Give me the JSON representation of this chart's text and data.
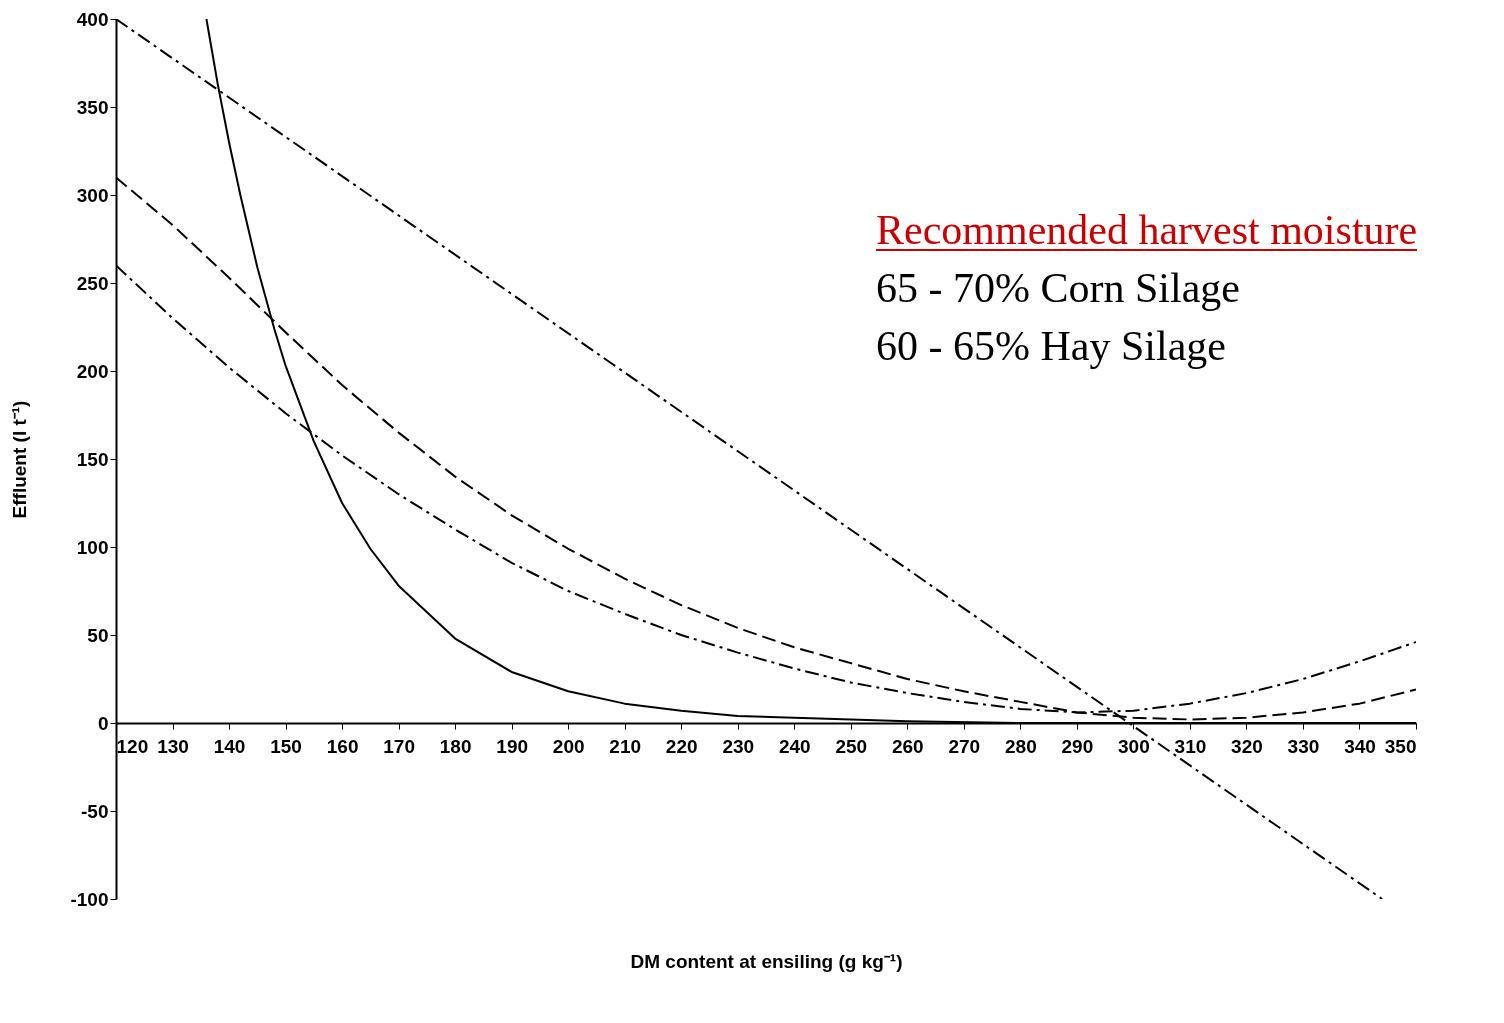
{
  "chart_data": {
    "type": "line",
    "xlabel": "DM content at ensiling (g kg⁻¹)",
    "ylabel": "Effluent (l t⁻¹)",
    "xlim": [
      120,
      350
    ],
    "xticks": [
      120,
      130,
      140,
      150,
      160,
      170,
      180,
      190,
      200,
      210,
      220,
      230,
      240,
      250,
      260,
      270,
      280,
      290,
      300,
      310,
      320,
      330,
      340,
      350
    ],
    "ylim": [
      -100,
      400
    ],
    "yticks": [
      -100,
      -50,
      0,
      50,
      100,
      150,
      200,
      250,
      300,
      350,
      400
    ],
    "grid": false,
    "marker": "none",
    "annotations": [
      "Recommended harvest moisture",
      "65 - 70%  Corn Silage",
      "60 - 65% Hay Silage"
    ],
    "series": [
      {
        "color": "#000000",
        "line_style": "solid",
        "x": [
          136,
          138,
          140,
          142,
          145,
          148,
          150,
          155,
          160,
          165,
          170,
          180,
          190,
          200,
          210,
          220,
          230,
          240,
          260,
          280,
          300,
          350
        ],
        "values": [
          400,
          363,
          330,
          300,
          259,
          224,
          203,
          160,
          125,
          99,
          78,
          48,
          29,
          18,
          11,
          7,
          4,
          3,
          1,
          0,
          0,
          0
        ]
      },
      {
        "color": "#000000",
        "line_style": "dashdot",
        "x": [
          120,
          344
        ],
        "values": [
          400,
          -100
        ]
      },
      {
        "color": "#000000",
        "line_style": "dashed",
        "x": [
          120,
          130,
          140,
          150,
          160,
          170,
          180,
          190,
          200,
          210,
          220,
          230,
          240,
          250,
          260,
          270,
          280,
          290,
          300,
          310,
          320,
          330,
          340,
          350
        ],
        "values": [
          310,
          283,
          253,
          222,
          192,
          165,
          140,
          118,
          99,
          82,
          67,
          54,
          43,
          34,
          25,
          18,
          12,
          6,
          3,
          2,
          3,
          6,
          11,
          19
        ]
      },
      {
        "color": "#000000",
        "line_style": "dashdot",
        "x": [
          120,
          130,
          140,
          150,
          160,
          170,
          180,
          190,
          200,
          210,
          220,
          230,
          240,
          250,
          260,
          270,
          280,
          290,
          300,
          310,
          320,
          330,
          340,
          350
        ],
        "values": [
          260,
          230,
          202,
          176,
          152,
          130,
          110,
          91,
          75,
          62,
          50,
          40,
          31,
          23,
          17,
          12,
          8,
          6,
          7,
          11,
          17,
          25,
          35,
          46
        ]
      }
    ]
  }
}
